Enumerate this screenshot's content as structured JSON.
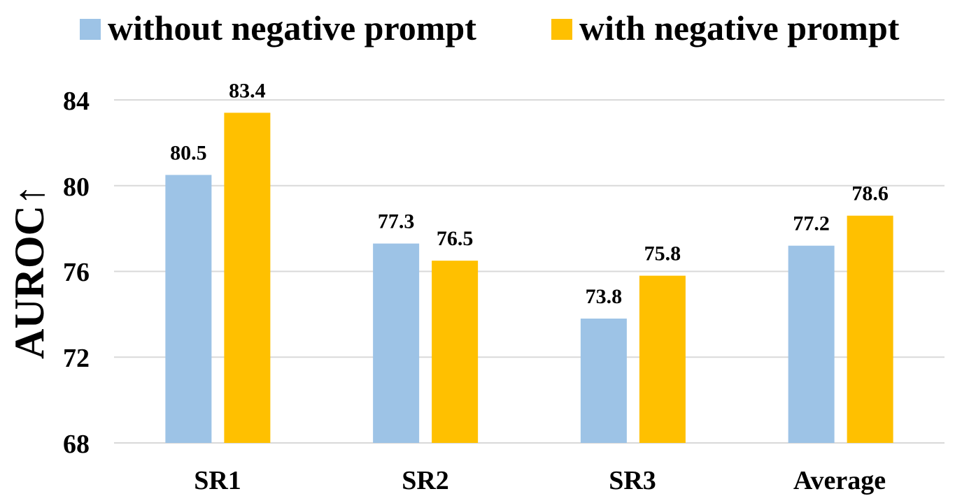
{
  "chart_data": {
    "type": "bar",
    "title": "",
    "xlabel": "",
    "ylabel": "AUROC↑",
    "categories": [
      "SR1",
      "SR2",
      "SR3",
      "Average"
    ],
    "series": [
      {
        "name": "without negative prompt",
        "color": "#9DC3E6",
        "values": [
          80.5,
          77.3,
          73.8,
          77.2
        ]
      },
      {
        "name": "with negative prompt",
        "color": "#FFC000",
        "values": [
          83.4,
          76.5,
          75.8,
          78.6
        ]
      }
    ],
    "value_labels": [
      [
        "80.5",
        "77.3",
        "73.8",
        "77.2"
      ],
      [
        "83.4",
        "76.5",
        "75.8",
        "78.6"
      ]
    ],
    "ylim": [
      68,
      84
    ],
    "yticks": [
      68,
      72,
      76,
      80,
      84
    ],
    "ytick_labels": [
      "68",
      "72",
      "76",
      "80",
      "84"
    ],
    "grid": true,
    "gridline_color": "#D9D9D9",
    "legend_position": "top"
  }
}
